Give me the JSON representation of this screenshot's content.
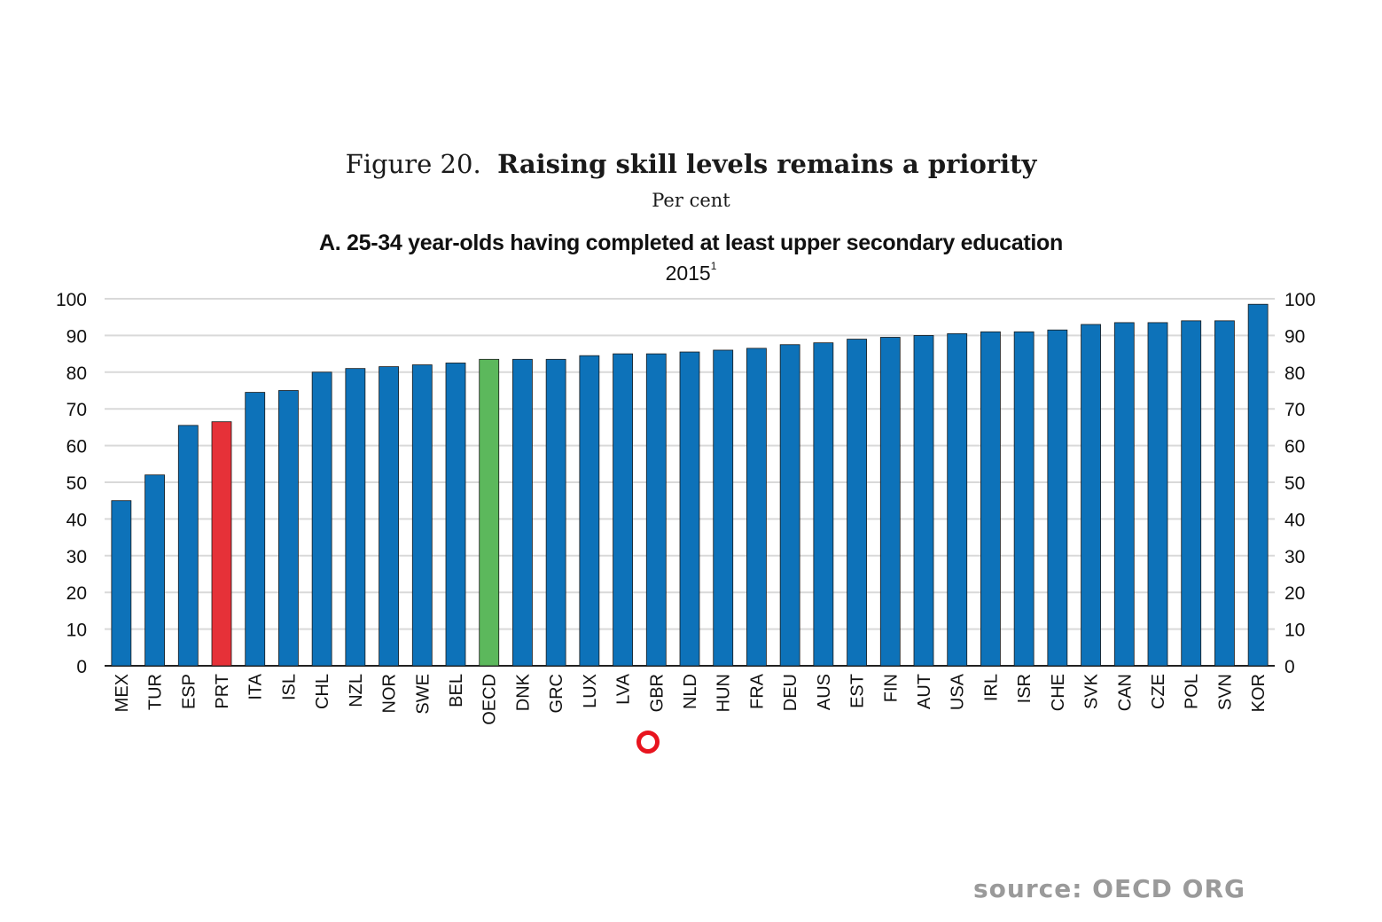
{
  "figure": {
    "label": "Figure 20.",
    "title": "Raising skill levels remains a priority",
    "unit": "Per cent"
  },
  "colors": {
    "default_bar": "#0d72b9",
    "highlight_country": "#e63138",
    "oecd_average": "#5cb85c",
    "gridline": "#d9d9d9",
    "marker": "#e8141e",
    "source_text": "#9a9a9a"
  },
  "chart_data": {
    "type": "bar",
    "title": "A. 25-34 year-olds having completed at least upper secondary education",
    "subtitle": "2015",
    "subtitle_footnote": "1",
    "xlabel": "",
    "ylabel": "",
    "ylim": [
      0,
      100
    ],
    "yticks": [
      0,
      10,
      20,
      30,
      40,
      50,
      60,
      70,
      80,
      90,
      100
    ],
    "y_axis_both_sides": true,
    "grid": true,
    "categories": [
      "MEX",
      "TUR",
      "ESP",
      "PRT",
      "ITA",
      "ISL",
      "CHL",
      "NZL",
      "NOR",
      "SWE",
      "BEL",
      "OECD",
      "DNK",
      "GRC",
      "LUX",
      "LVA",
      "GBR",
      "NLD",
      "HUN",
      "FRA",
      "DEU",
      "AUS",
      "EST",
      "FIN",
      "AUT",
      "USA",
      "IRL",
      "ISR",
      "CHE",
      "SVK",
      "CAN",
      "CZE",
      "POL",
      "SVN",
      "KOR"
    ],
    "values": [
      45,
      52,
      65.5,
      66.5,
      74.5,
      75,
      80,
      81,
      81.5,
      82,
      82.5,
      83.5,
      83.5,
      83.5,
      84.5,
      85,
      85,
      85.5,
      86,
      86.5,
      87.5,
      88,
      89,
      89.5,
      90,
      90.5,
      91,
      91,
      91.5,
      93,
      93.5,
      93.5,
      94,
      94,
      98.5
    ],
    "highlighted": {
      "PRT": "highlight_country",
      "OECD": "oecd_average"
    }
  },
  "annotation": {
    "marker_under_category": "GBR"
  },
  "source": "source: OECD ORG"
}
